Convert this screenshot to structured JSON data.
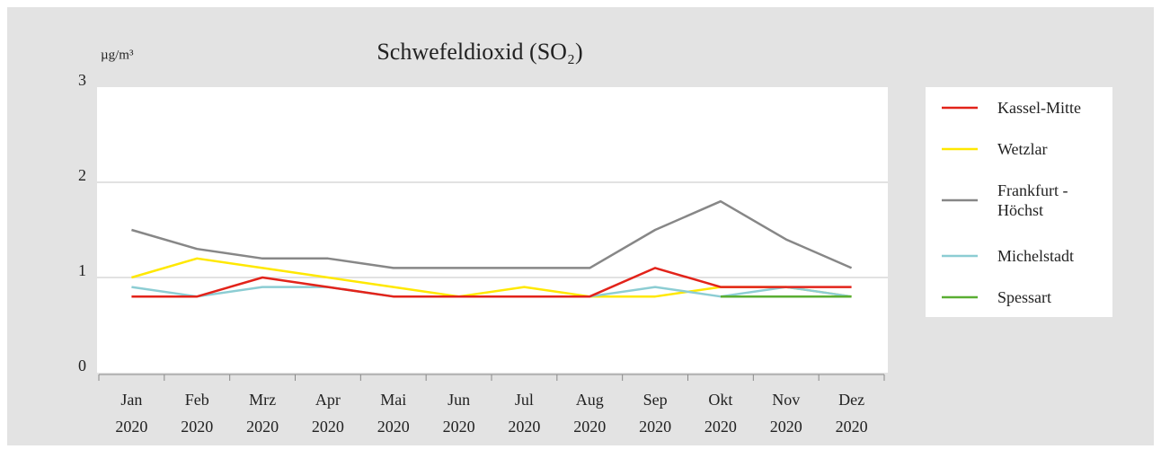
{
  "chart_data": {
    "type": "line",
    "title": "Schwefeldioxid (SO₂)",
    "y_label": "µg/m³",
    "categories": [
      "Jan 2020",
      "Feb 2020",
      "Mrz 2020",
      "Apr 2020",
      "Mai 2020",
      "Jun 2020",
      "Jul 2020",
      "Aug 2020",
      "Sep 2020",
      "Okt 2020",
      "Nov 2020",
      "Dez 2020"
    ],
    "series": [
      {
        "name": "Kassel-Mitte",
        "color": "#e2231a",
        "values": [
          0.8,
          0.8,
          1.0,
          0.9,
          0.8,
          0.8,
          0.8,
          0.8,
          1.1,
          0.9,
          0.9,
          0.9
        ]
      },
      {
        "name": "Wetzlar",
        "color": "#ffe800",
        "values": [
          1.0,
          1.2,
          1.1,
          1.0,
          0.9,
          0.8,
          0.9,
          0.8,
          0.8,
          0.9,
          0.9,
          0.8
        ]
      },
      {
        "name": "Frankfurt - Höchst",
        "color": "#878787",
        "values": [
          1.5,
          1.3,
          1.2,
          1.2,
          1.1,
          1.1,
          1.1,
          1.1,
          1.5,
          1.8,
          1.4,
          1.1
        ]
      },
      {
        "name": "Michelstadt",
        "color": "#8ccdd3",
        "values": [
          0.9,
          0.8,
          0.9,
          0.9,
          0.8,
          0.8,
          0.8,
          0.8,
          0.9,
          0.8,
          0.9,
          0.8
        ]
      },
      {
        "name": "Spessart",
        "color": "#5aae32",
        "values": [
          null,
          null,
          null,
          null,
          null,
          null,
          null,
          null,
          null,
          0.8,
          0.8,
          0.8
        ]
      }
    ],
    "ylim": [
      0,
      3
    ],
    "yticks": [
      0,
      1,
      2,
      3
    ],
    "grid": true,
    "legend": "right"
  }
}
